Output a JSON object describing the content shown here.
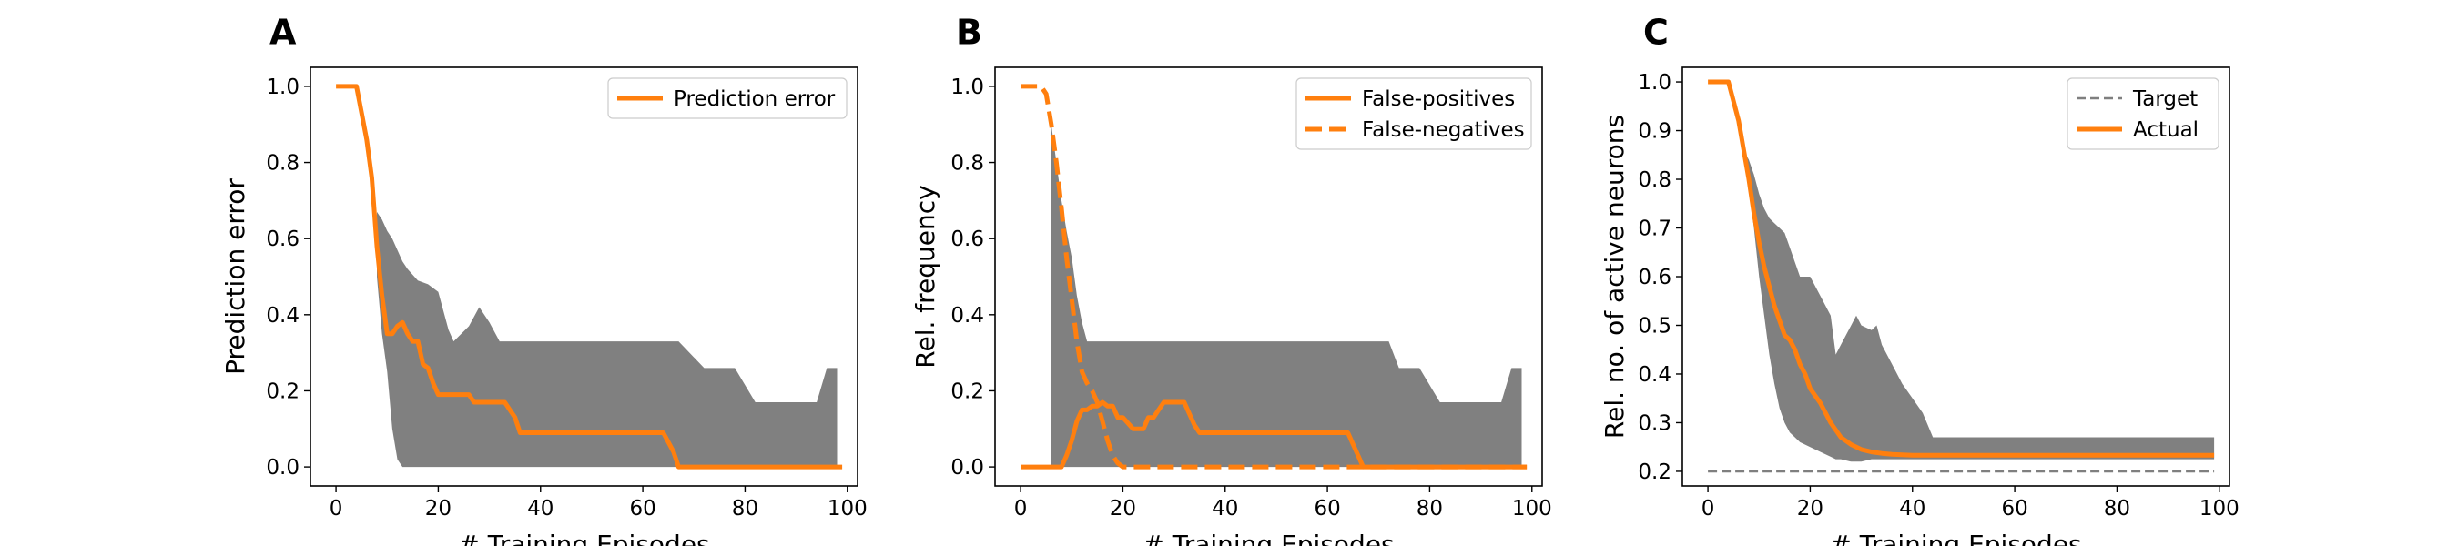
{
  "colors": {
    "orange": "#ff7f0e",
    "band": "#808080",
    "target": "#7f7f7f"
  },
  "chart_data": [
    {
      "type": "line",
      "panel": "A",
      "xlabel": "# Training Episodes",
      "ylabel": "Prediction error",
      "xlim": [
        -5,
        102
      ],
      "ylim": [
        -0.05,
        1.05
      ],
      "xticks": [
        0,
        20,
        40,
        60,
        80,
        100
      ],
      "yticks": [
        0.0,
        0.2,
        0.4,
        0.6,
        0.8,
        1.0
      ],
      "legend": "top-right",
      "band": {
        "x": [
          8,
          9,
          10,
          11,
          12,
          13,
          14,
          16,
          18,
          20,
          22,
          23,
          26,
          28,
          30,
          32,
          35,
          45,
          55,
          67,
          72,
          74,
          78,
          82,
          84,
          88,
          90,
          92,
          94,
          96,
          98
        ],
        "upper": [
          0.67,
          0.65,
          0.62,
          0.6,
          0.57,
          0.54,
          0.52,
          0.49,
          0.48,
          0.46,
          0.36,
          0.33,
          0.37,
          0.42,
          0.38,
          0.33,
          0.33,
          0.33,
          0.33,
          0.33,
          0.26,
          0.26,
          0.26,
          0.17,
          0.17,
          0.17,
          0.17,
          0.17,
          0.17,
          0.26,
          0.26
        ],
        "lower": [
          0.5,
          0.35,
          0.25,
          0.1,
          0.02,
          0.0,
          0.0,
          0.0,
          0.0,
          0.0,
          0.0,
          0.0,
          0.0,
          0.0,
          0.0,
          0.0,
          0.0,
          0.0,
          0.0,
          0.0,
          0.0,
          0.0,
          0.0,
          0.0,
          0.0,
          0.0,
          0.0,
          0.0,
          0.0,
          0.0,
          0.0
        ]
      },
      "series": [
        {
          "name": "Prediction error",
          "style": "solid",
          "x": [
            0,
            4,
            6,
            7,
            8,
            9,
            10,
            11,
            12,
            13,
            14,
            15,
            16,
            17,
            18,
            19,
            20,
            21,
            22,
            24,
            26,
            27,
            28,
            30,
            32,
            33,
            35,
            36,
            40,
            50,
            60,
            64,
            66,
            67,
            70,
            80,
            90,
            99
          ],
          "y": [
            1.0,
            1.0,
            0.86,
            0.76,
            0.58,
            0.45,
            0.35,
            0.35,
            0.37,
            0.38,
            0.35,
            0.33,
            0.33,
            0.27,
            0.26,
            0.22,
            0.19,
            0.19,
            0.19,
            0.19,
            0.19,
            0.17,
            0.17,
            0.17,
            0.17,
            0.17,
            0.13,
            0.09,
            0.09,
            0.09,
            0.09,
            0.09,
            0.04,
            0.0,
            0.0,
            0.0,
            0.0,
            0.0
          ]
        }
      ]
    },
    {
      "type": "line",
      "panel": "B",
      "xlabel": "# Training Episodes",
      "ylabel": "Rel. frequency",
      "xlim": [
        -5,
        102
      ],
      "ylim": [
        -0.05,
        1.05
      ],
      "xticks": [
        0,
        20,
        40,
        60,
        80,
        100
      ],
      "yticks": [
        0.0,
        0.2,
        0.4,
        0.6,
        0.8,
        1.0
      ],
      "legend": "top-right",
      "band": {
        "x": [
          6,
          7,
          8,
          9,
          10,
          11,
          12,
          13,
          14,
          16,
          18,
          20,
          22,
          26,
          30,
          35,
          45,
          55,
          62,
          68,
          72,
          74,
          78,
          82,
          84,
          88,
          90,
          92,
          94,
          96,
          98
        ],
        "upper": [
          0.9,
          0.8,
          0.7,
          0.62,
          0.55,
          0.45,
          0.38,
          0.33,
          0.33,
          0.33,
          0.33,
          0.33,
          0.33,
          0.33,
          0.33,
          0.33,
          0.33,
          0.33,
          0.33,
          0.33,
          0.33,
          0.26,
          0.26,
          0.17,
          0.17,
          0.17,
          0.17,
          0.17,
          0.17,
          0.26,
          0.26
        ],
        "lower": [
          0.0,
          0.0,
          0.0,
          0.0,
          0.0,
          0.0,
          0.0,
          0.0,
          0.0,
          0.0,
          0.0,
          0.0,
          0.0,
          0.0,
          0.0,
          0.0,
          0.0,
          0.0,
          0.0,
          0.0,
          0.0,
          0.0,
          0.0,
          0.0,
          0.0,
          0.0,
          0.0,
          0.0,
          0.0,
          0.0,
          0.0
        ]
      },
      "series": [
        {
          "name": "False-positives",
          "style": "solid",
          "x": [
            0,
            8,
            9,
            10,
            11,
            12,
            13,
            14,
            15,
            16,
            17,
            18,
            19,
            20,
            22,
            23,
            24,
            25,
            26,
            27,
            28,
            29,
            30,
            32,
            33,
            34,
            35,
            36,
            40,
            50,
            60,
            64,
            65,
            66,
            67,
            70,
            80,
            90,
            99
          ],
          "y": [
            0.0,
            0.0,
            0.03,
            0.07,
            0.12,
            0.15,
            0.15,
            0.16,
            0.16,
            0.17,
            0.16,
            0.16,
            0.13,
            0.13,
            0.1,
            0.1,
            0.1,
            0.13,
            0.13,
            0.15,
            0.17,
            0.17,
            0.17,
            0.17,
            0.14,
            0.11,
            0.09,
            0.09,
            0.09,
            0.09,
            0.09,
            0.09,
            0.06,
            0.03,
            0.0,
            0.0,
            0.0,
            0.0,
            0.0
          ]
        },
        {
          "name": "False-negatives",
          "style": "dashed",
          "x": [
            0,
            4,
            5,
            6,
            7,
            8,
            9,
            10,
            11,
            12,
            13,
            14,
            15,
            16,
            17,
            18,
            19,
            20,
            22,
            30,
            40,
            50,
            60,
            70,
            80,
            90,
            99
          ],
          "y": [
            1.0,
            1.0,
            0.98,
            0.9,
            0.8,
            0.68,
            0.55,
            0.44,
            0.33,
            0.25,
            0.22,
            0.2,
            0.17,
            0.12,
            0.07,
            0.03,
            0.01,
            0.0,
            0.0,
            0.0,
            0.0,
            0.0,
            0.0,
            0.0,
            0.0,
            0.0,
            0.0
          ]
        }
      ]
    },
    {
      "type": "line",
      "panel": "C",
      "xlabel": "# Training Episodes",
      "ylabel": "Rel. no. of active neurons",
      "xlim": [
        -5,
        102
      ],
      "ylim": [
        0.17,
        1.03
      ],
      "xticks": [
        0,
        20,
        40,
        60,
        80,
        100
      ],
      "yticks": [
        0.2,
        0.3,
        0.4,
        0.5,
        0.6,
        0.7,
        0.8,
        0.9,
        1.0
      ],
      "legend": "top-right",
      "band": {
        "x": [
          7,
          8,
          9,
          10,
          11,
          12,
          13,
          14,
          15,
          16,
          17,
          18,
          20,
          22,
          24,
          25,
          26,
          28,
          29,
          30,
          32,
          33,
          34,
          36,
          38,
          40,
          42,
          44,
          48,
          55,
          65,
          75,
          85,
          95,
          99
        ],
        "upper": [
          0.86,
          0.84,
          0.81,
          0.77,
          0.74,
          0.72,
          0.71,
          0.7,
          0.69,
          0.66,
          0.63,
          0.6,
          0.6,
          0.56,
          0.52,
          0.44,
          0.46,
          0.5,
          0.52,
          0.5,
          0.49,
          0.5,
          0.46,
          0.42,
          0.38,
          0.35,
          0.32,
          0.27,
          0.27,
          0.27,
          0.27,
          0.27,
          0.27,
          0.27,
          0.27
        ],
        "lower": [
          0.86,
          0.78,
          0.7,
          0.6,
          0.52,
          0.44,
          0.38,
          0.33,
          0.3,
          0.28,
          0.27,
          0.26,
          0.25,
          0.24,
          0.23,
          0.225,
          0.225,
          0.22,
          0.22,
          0.22,
          0.225,
          0.225,
          0.225,
          0.225,
          0.225,
          0.225,
          0.225,
          0.225,
          0.225,
          0.225,
          0.225,
          0.225,
          0.225,
          0.225,
          0.225
        ]
      },
      "series": [
        {
          "name": "Target",
          "style": "dashed-thin",
          "x": [
            0,
            99
          ],
          "y": [
            0.2,
            0.2
          ]
        },
        {
          "name": "Actual",
          "style": "solid",
          "x": [
            0,
            4,
            5,
            6,
            7,
            8,
            9,
            10,
            11,
            12,
            13,
            14,
            15,
            16,
            17,
            18,
            19,
            20,
            22,
            24,
            26,
            28,
            30,
            32,
            34,
            36,
            38,
            40,
            45,
            50,
            60,
            70,
            80,
            90,
            99
          ],
          "y": [
            1.0,
            1.0,
            0.96,
            0.92,
            0.86,
            0.8,
            0.73,
            0.67,
            0.62,
            0.58,
            0.54,
            0.51,
            0.48,
            0.47,
            0.45,
            0.42,
            0.4,
            0.37,
            0.34,
            0.3,
            0.27,
            0.255,
            0.245,
            0.24,
            0.237,
            0.235,
            0.234,
            0.233,
            0.233,
            0.233,
            0.233,
            0.233,
            0.233,
            0.233,
            0.233
          ]
        }
      ]
    }
  ]
}
